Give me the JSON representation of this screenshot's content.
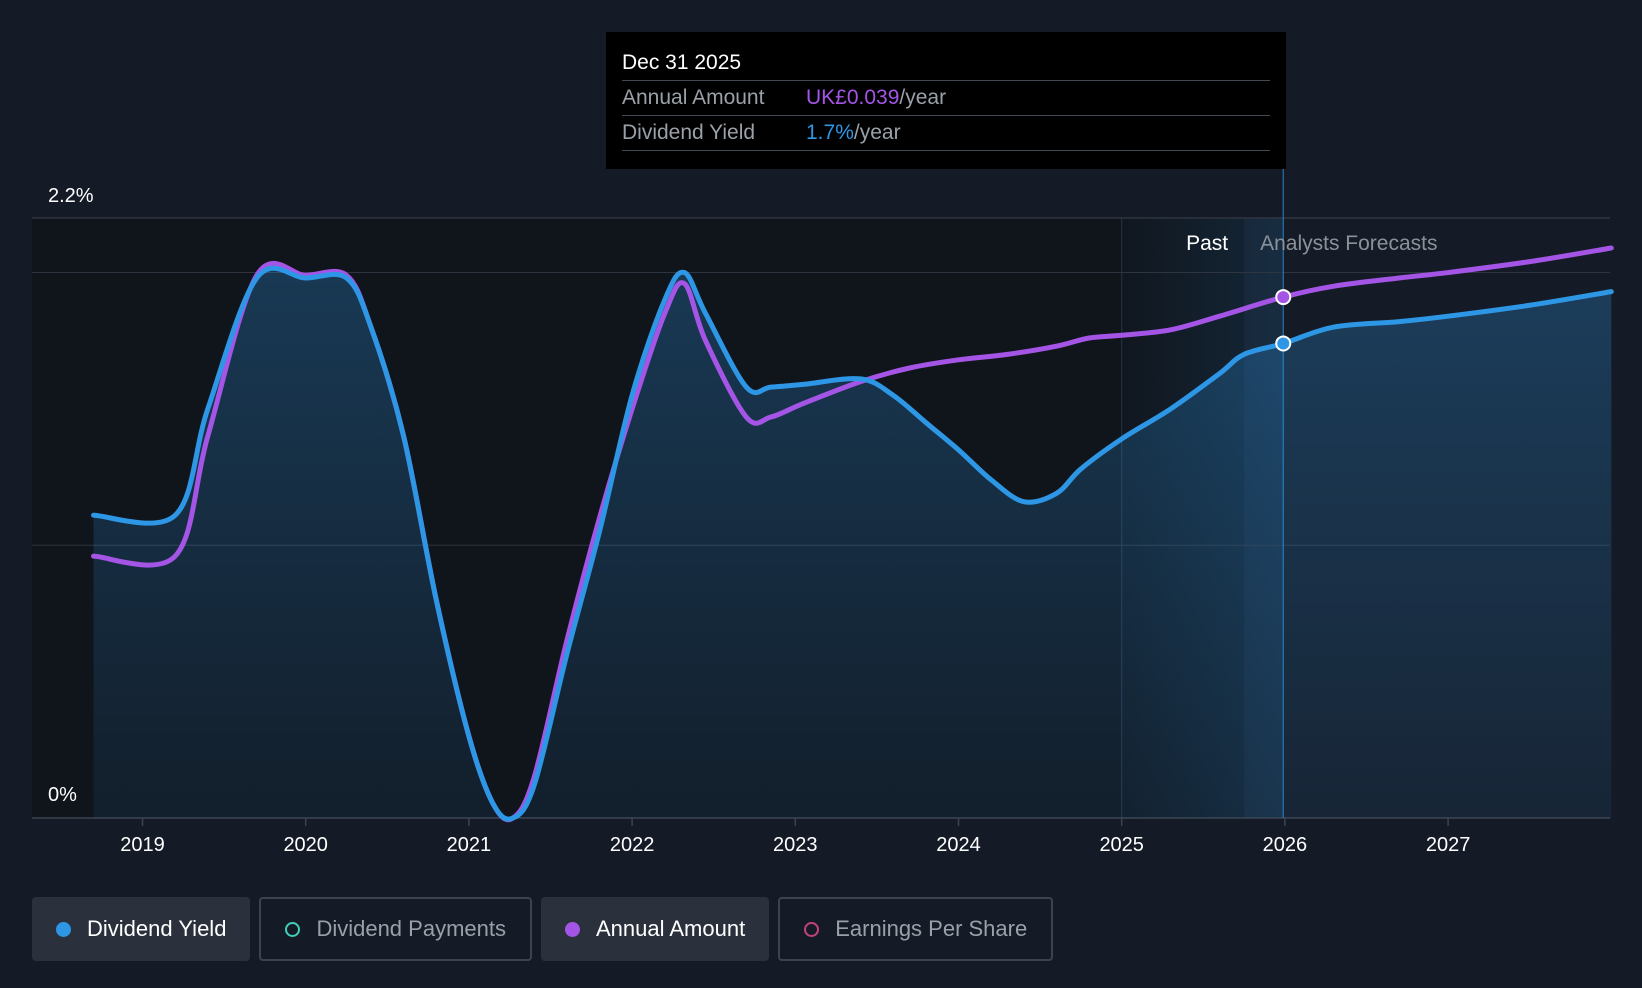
{
  "chart_data": {
    "type": "line",
    "title": "",
    "y_tick_labels": [
      "2.2%",
      "0%"
    ],
    "ylim": [
      0,
      2.2
    ],
    "x_tick_labels": [
      "2019",
      "2020",
      "2021",
      "2022",
      "2023",
      "2024",
      "2025",
      "2026",
      "2027"
    ],
    "xlim": [
      2018.7,
      2028.0
    ],
    "past_label": "Past",
    "forecast_label": "Analysts Forecasts",
    "forecast_start_year": 2025.75,
    "past_highlight_start_year": 2025.0,
    "series": [
      {
        "name": "Dividend Yield",
        "color": "#2d97e6",
        "filled": true,
        "points": [
          [
            2018.7,
            1.11
          ],
          [
            2019.2,
            1.11
          ],
          [
            2019.4,
            1.5
          ],
          [
            2019.7,
            1.98
          ],
          [
            2020.0,
            1.98
          ],
          [
            2020.25,
            1.98
          ],
          [
            2020.4,
            1.8
          ],
          [
            2020.6,
            1.4
          ],
          [
            2020.8,
            0.8
          ],
          [
            2021.0,
            0.3
          ],
          [
            2021.15,
            0.05
          ],
          [
            2021.27,
            0.0
          ],
          [
            2021.4,
            0.12
          ],
          [
            2021.6,
            0.6
          ],
          [
            2021.8,
            1.05
          ],
          [
            2022.0,
            1.55
          ],
          [
            2022.2,
            1.9
          ],
          [
            2022.32,
            2.0
          ],
          [
            2022.45,
            1.85
          ],
          [
            2022.7,
            1.58
          ],
          [
            2022.85,
            1.58
          ],
          [
            2023.05,
            1.59
          ],
          [
            2023.4,
            1.61
          ],
          [
            2023.6,
            1.55
          ],
          [
            2023.8,
            1.45
          ],
          [
            2024.0,
            1.35
          ],
          [
            2024.2,
            1.24
          ],
          [
            2024.4,
            1.16
          ],
          [
            2024.6,
            1.19
          ],
          [
            2024.75,
            1.28
          ],
          [
            2025.0,
            1.39
          ],
          [
            2025.3,
            1.5
          ],
          [
            2025.6,
            1.63
          ],
          [
            2025.75,
            1.7
          ],
          [
            2025.99,
            1.74
          ],
          [
            2026.3,
            1.8
          ],
          [
            2026.7,
            1.82
          ],
          [
            2027.0,
            1.84
          ],
          [
            2027.5,
            1.88
          ],
          [
            2028.0,
            1.93
          ]
        ],
        "marker": [
          2025.99,
          1.74
        ]
      },
      {
        "name": "Annual Amount",
        "color": "#a455e6",
        "filled": false,
        "points": [
          [
            2018.7,
            0.96
          ],
          [
            2019.2,
            0.96
          ],
          [
            2019.4,
            1.4
          ],
          [
            2019.7,
            1.99
          ],
          [
            2020.0,
            1.99
          ],
          [
            2020.25,
            1.99
          ],
          [
            2020.4,
            1.8
          ],
          [
            2020.6,
            1.4
          ],
          [
            2020.8,
            0.8
          ],
          [
            2021.0,
            0.3
          ],
          [
            2021.15,
            0.05
          ],
          [
            2021.27,
            0.0
          ],
          [
            2021.4,
            0.15
          ],
          [
            2021.6,
            0.65
          ],
          [
            2021.8,
            1.1
          ],
          [
            2022.0,
            1.5
          ],
          [
            2022.2,
            1.85
          ],
          [
            2022.32,
            1.96
          ],
          [
            2022.45,
            1.75
          ],
          [
            2022.7,
            1.47
          ],
          [
            2022.85,
            1.47
          ],
          [
            2023.05,
            1.52
          ],
          [
            2023.4,
            1.6
          ],
          [
            2023.7,
            1.65
          ],
          [
            2024.0,
            1.68
          ],
          [
            2024.3,
            1.7
          ],
          [
            2024.6,
            1.73
          ],
          [
            2024.8,
            1.76
          ],
          [
            2025.0,
            1.77
          ],
          [
            2025.3,
            1.79
          ],
          [
            2025.6,
            1.84
          ],
          [
            2025.99,
            1.91
          ],
          [
            2026.3,
            1.95
          ],
          [
            2026.7,
            1.98
          ],
          [
            2027.0,
            2.0
          ],
          [
            2027.5,
            2.04
          ],
          [
            2028.0,
            2.09
          ]
        ],
        "marker": [
          2025.99,
          1.91
        ]
      }
    ],
    "gridlines": [
      2.2,
      2.0,
      1.0,
      0
    ]
  },
  "tooltip": {
    "date": "Dec 31 2025",
    "annual_amount_label": "Annual Amount",
    "annual_amount_value": "UK£0.039",
    "annual_amount_unit": "/year",
    "dividend_yield_label": "Dividend Yield",
    "dividend_yield_value": "1.7%",
    "dividend_yield_unit": "/year"
  },
  "legend": {
    "items": [
      {
        "label": "Dividend Yield",
        "color": "#2d97e6",
        "active": true
      },
      {
        "label": "Dividend Payments",
        "color": "#3ecfb9",
        "active": false
      },
      {
        "label": "Annual Amount",
        "color": "#a455e6",
        "active": true
      },
      {
        "label": "Earnings Per Share",
        "color": "#c2437a",
        "active": false
      }
    ]
  }
}
